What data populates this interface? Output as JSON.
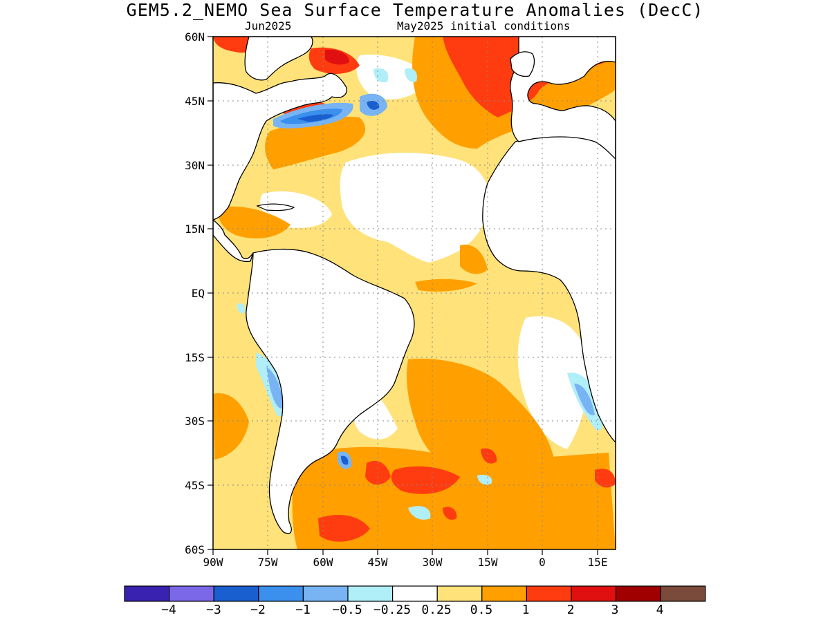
{
  "title": "GEM5.2_NEMO Sea Surface Temperature Anomalies (DecC)",
  "subtitle_left": "Jun2025",
  "subtitle_right": "May2025 initial conditions",
  "map": {
    "lat_labels": [
      "60N",
      "45N",
      "30N",
      "15N",
      "EQ",
      "15S",
      "30S",
      "45S",
      "60S"
    ],
    "lon_labels": [
      "90W",
      "75W",
      "60W",
      "45W",
      "30W",
      "15W",
      "0",
      "15E"
    ],
    "lat_range": [
      -60,
      60
    ],
    "lon_range": [
      -90,
      20
    ],
    "grid": "dotted"
  },
  "colorbar": {
    "colors": [
      "#3a22b0",
      "#7b68e8",
      "#1a5fd0",
      "#3a90ec",
      "#78b4f4",
      "#b0eef8",
      "#ffffff",
      "#ffe27a",
      "#ffa000",
      "#ff3c10",
      "#e01010",
      "#a00000",
      "#7a4a3a"
    ],
    "labels": [
      "−4",
      "−3",
      "−2",
      "−1",
      "−0.5",
      "−0.25",
      "0.25",
      "0.5",
      "1",
      "2",
      "3",
      "4"
    ]
  }
}
